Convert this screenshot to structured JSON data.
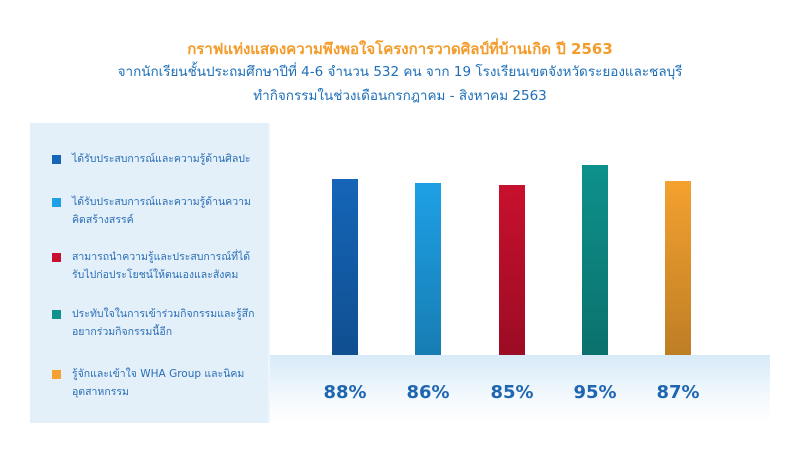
{
  "header": {
    "title": "กราฟแท่งแสดงความพึงพอใจโครงการวาดศิลป์ที่บ้านเกิด ปี 2563",
    "subtitle1": "จากนักเรียนชั้นประถมศึกษาปีที่ 4-6 จำนวน 532 คน จาก 19 โรงเรียนเขตจังหวัดระยองและชลบุรี",
    "subtitle2": "ทำกิจกรรมในช่วงเดือนกรกฎาคม - สิงหาคม 2563"
  },
  "chart_data": {
    "type": "bar",
    "title": "กราฟแท่งแสดงความพึงพอใจโครงการวาดศิลป์ที่บ้านเกิด ปี 2563",
    "ylim": [
      0,
      100
    ],
    "grid": false,
    "legend_position": "left",
    "categories": [
      "ได้รับประสบการณ์และความรู้ด้านศิลปะ",
      "ได้รับประสบการณ์และความรู้ด้านความคิดสร้างสรรค์",
      "สามารถนำความรู้และประสบการณ์ที่ได้รับไปก่อประโยชน์ให้ตนเองและสังคม",
      "ประทับใจในการเข้าร่วมกิจกรรมและรู้สึกอยากร่วมกิจกรรมนี้อีก",
      "รู้จักและเข้าใจ WHA Group และนิคมอุตสาหกรรม"
    ],
    "values": [
      88,
      86,
      85,
      95,
      87
    ],
    "value_labels": [
      "88%",
      "86%",
      "85%",
      "95%",
      "87%"
    ],
    "colors": [
      "#1565b8",
      "#1ea0e6",
      "#c8102e",
      "#0e918c",
      "#f4a12f"
    ],
    "legend": [
      {
        "line1": "ได้รับประสบการณ์และความรู้ด้านศิลปะ",
        "line2": ""
      },
      {
        "line1": "ได้รับประสบการณ์และความรู้ด้านความ",
        "line2": "คิดสร้างสรรค์"
      },
      {
        "line1": "สามารถนำความรู้และประสบการณ์ที่ได้",
        "line2": "รับไปก่อประโยชน์ให้ตนเองและสังคม"
      },
      {
        "line1": "ประทับใจในการเข้าร่วมกิจกรรมและรู้สึก",
        "line2": "อยากร่วมกิจกรรมนี้อีก"
      },
      {
        "line1": "รู้จักและเข้าใจ WHA Group และนิคม",
        "line2": "อุตสาหกรรม"
      }
    ]
  }
}
